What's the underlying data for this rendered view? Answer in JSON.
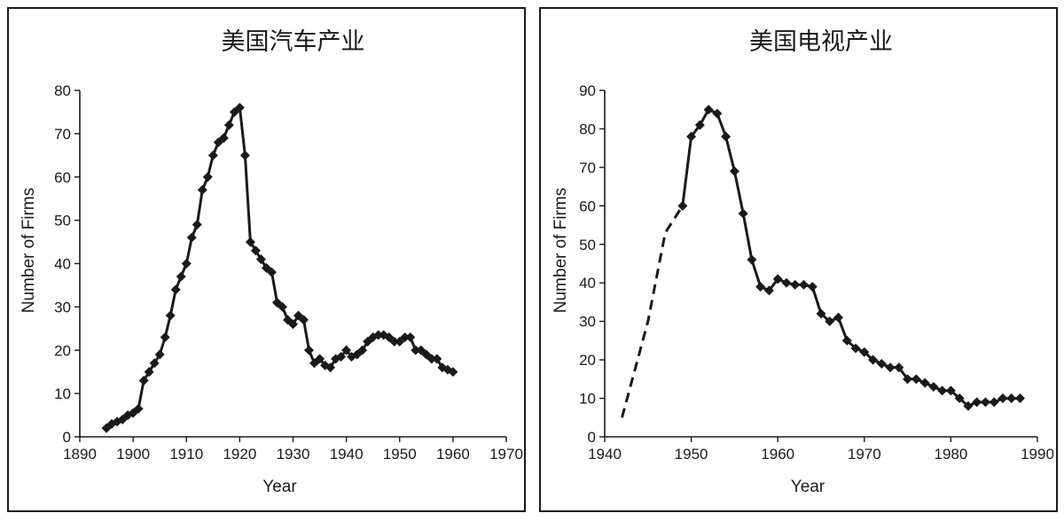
{
  "chart_data": [
    {
      "type": "line",
      "title": "美国汽车产业",
      "xlabel": "Year",
      "ylabel": "Number of Firms",
      "xlim": [
        1890,
        1970
      ],
      "ylim": [
        0,
        80
      ],
      "xticks": [
        1890,
        1900,
        1910,
        1920,
        1930,
        1940,
        1950,
        1960,
        1970
      ],
      "yticks": [
        0,
        10,
        20,
        30,
        40,
        50,
        60,
        70,
        80
      ],
      "grid": false,
      "marker": "diamond",
      "color": "#1a1a1a",
      "series": [
        {
          "style": "solid",
          "x": [
            1895,
            1896,
            1897,
            1898,
            1899,
            1900,
            1901,
            1902,
            1903,
            1904,
            1905,
            1906,
            1907,
            1908,
            1909,
            1910,
            1911,
            1912,
            1913,
            1914,
            1915,
            1916,
            1917,
            1918,
            1919,
            1920,
            1921,
            1922,
            1923,
            1924,
            1925,
            1926,
            1927,
            1928,
            1929,
            1930,
            1931,
            1932,
            1933,
            1934,
            1935,
            1936,
            1937,
            1938,
            1939,
            1940,
            1941,
            1942,
            1943,
            1944,
            1945,
            1946,
            1947,
            1948,
            1949,
            1950,
            1951,
            1952,
            1953,
            1954,
            1955,
            1956,
            1957,
            1958,
            1959,
            1960
          ],
          "y": [
            2,
            3,
            3.5,
            4,
            5,
            5.5,
            6.5,
            13,
            15,
            17,
            19,
            23,
            28,
            34,
            37,
            40,
            46,
            49,
            57,
            60,
            65,
            68,
            69,
            72,
            75,
            76,
            65,
            45,
            43,
            41,
            39,
            38,
            31,
            30,
            27,
            26,
            28,
            27,
            20,
            17,
            18,
            16.5,
            16,
            18,
            18.5,
            20,
            18.5,
            19,
            20,
            22,
            23,
            23.5,
            23.5,
            23,
            22,
            22,
            23,
            23,
            20,
            20,
            19,
            18,
            18,
            16,
            15.5,
            15
          ]
        }
      ]
    },
    {
      "type": "line",
      "title": "美国电视产业",
      "xlabel": "Year",
      "ylabel": "Number of Firms",
      "xlim": [
        1940,
        1990
      ],
      "ylim": [
        0,
        90
      ],
      "xticks": [
        1940,
        1950,
        1960,
        1970,
        1980,
        1990
      ],
      "yticks": [
        0,
        10,
        20,
        30,
        40,
        50,
        60,
        70,
        80,
        90
      ],
      "grid": false,
      "marker": "diamond",
      "color": "#1a1a1a",
      "series": [
        {
          "style": "dashed",
          "x": [
            1942,
            1945,
            1947,
            1949
          ],
          "y": [
            5,
            30,
            53,
            60
          ]
        },
        {
          "style": "solid",
          "x": [
            1949,
            1950,
            1951,
            1952,
            1953,
            1954,
            1955,
            1956,
            1957,
            1958,
            1959,
            1960,
            1961,
            1962,
            1963,
            1964,
            1965,
            1966,
            1967,
            1968,
            1969,
            1970,
            1971,
            1972,
            1973,
            1974,
            1975,
            1976,
            1977,
            1978,
            1979,
            1980,
            1981,
            1982,
            1983,
            1984,
            1985,
            1986,
            1987,
            1988
          ],
          "y": [
            60,
            78,
            81,
            85,
            84,
            78,
            69,
            58,
            46,
            39,
            38,
            41,
            40,
            39.5,
            39.5,
            39,
            32,
            30,
            31,
            25,
            23,
            22,
            20,
            19,
            18,
            18,
            15,
            15,
            14,
            13,
            12,
            12,
            10,
            8,
            9,
            9,
            9,
            10,
            10,
            10
          ]
        }
      ]
    }
  ]
}
